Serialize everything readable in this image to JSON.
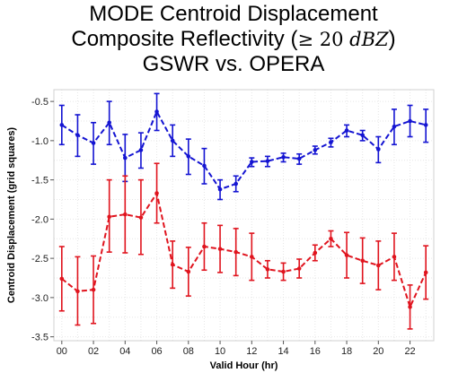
{
  "title": {
    "line1": "MODE Centroid Displacement",
    "line2_prefix": "Composite Reflectivity (",
    "line2_ge": "≥",
    "line2_num": "20",
    "line2_unit": "dBZ",
    "line2_suffix": ")",
    "line3": "GSWR vs. OPERA"
  },
  "chart_data": {
    "type": "line",
    "title": "MODE Centroid Displacement Composite Reflectivity (≥ 20 dBZ) GSWR vs. OPERA",
    "xlabel": "Valid Hour (hr)",
    "ylabel": "Centroid Displacement (grid squares)",
    "x_tick_labels": [
      "00",
      "02",
      "04",
      "06",
      "08",
      "10",
      "12",
      "14",
      "16",
      "18",
      "20",
      "22"
    ],
    "y_tick_labels": [
      "-0.5",
      "-1.0",
      "-1.5",
      "-2.0",
      "-2.5",
      "-3.0",
      "-3.5"
    ],
    "xlim": [
      -0.5,
      23.5
    ],
    "ylim": [
      -3.55,
      -0.35
    ],
    "grid": true,
    "error_bars": true,
    "x": [
      0,
      1,
      2,
      3,
      4,
      5,
      6,
      7,
      8,
      9,
      10,
      11,
      12,
      13,
      14,
      15,
      16,
      17,
      18,
      19,
      20,
      21,
      22,
      23
    ],
    "series": [
      {
        "color": "#1414d2",
        "values": [
          -0.8,
          -0.93,
          -1.03,
          -0.77,
          -1.22,
          -1.12,
          -0.63,
          -1.0,
          -1.2,
          -1.32,
          -1.62,
          -1.55,
          -1.27,
          -1.26,
          -1.21,
          -1.23,
          -1.12,
          -1.02,
          -0.87,
          -0.93,
          -1.11,
          -0.82,
          -0.75,
          -0.8
        ],
        "lower": [
          -1.05,
          -1.2,
          -1.3,
          -1.05,
          -1.52,
          -1.35,
          -0.87,
          -1.2,
          -1.43,
          -1.55,
          -1.75,
          -1.65,
          -1.33,
          -1.33,
          -1.27,
          -1.3,
          -1.17,
          -1.08,
          -0.95,
          -1.0,
          -1.28,
          -1.05,
          -0.95,
          -1.02
        ],
        "upper": [
          -0.55,
          -0.67,
          -0.77,
          -0.5,
          -0.92,
          -0.9,
          -0.4,
          -0.8,
          -0.98,
          -1.1,
          -1.5,
          -1.45,
          -1.22,
          -1.2,
          -1.16,
          -1.17,
          -1.07,
          -0.97,
          -0.8,
          -0.87,
          -0.95,
          -0.6,
          -0.55,
          -0.6
        ]
      },
      {
        "color": "#e0141e",
        "values": [
          -2.76,
          -2.92,
          -2.9,
          -1.97,
          -1.94,
          -1.98,
          -1.67,
          -2.58,
          -2.67,
          -2.35,
          -2.38,
          -2.42,
          -2.48,
          -2.64,
          -2.67,
          -2.63,
          -2.43,
          -2.25,
          -2.46,
          -2.53,
          -2.59,
          -2.48,
          -3.12,
          -2.68
        ],
        "lower": [
          -3.17,
          -3.35,
          -3.33,
          -2.42,
          -2.43,
          -2.45,
          -2.05,
          -2.88,
          -2.98,
          -2.65,
          -2.68,
          -2.72,
          -2.78,
          -2.75,
          -2.78,
          -2.75,
          -2.53,
          -2.35,
          -2.75,
          -2.82,
          -2.9,
          -2.78,
          -3.4,
          -3.02
        ],
        "upper": [
          -2.35,
          -2.48,
          -2.47,
          -1.5,
          -1.45,
          -1.5,
          -1.29,
          -2.28,
          -2.36,
          -2.05,
          -2.08,
          -2.12,
          -2.18,
          -2.53,
          -2.56,
          -2.51,
          -2.33,
          -2.15,
          -2.17,
          -2.24,
          -2.28,
          -2.18,
          -2.84,
          -2.34
        ]
      }
    ]
  }
}
